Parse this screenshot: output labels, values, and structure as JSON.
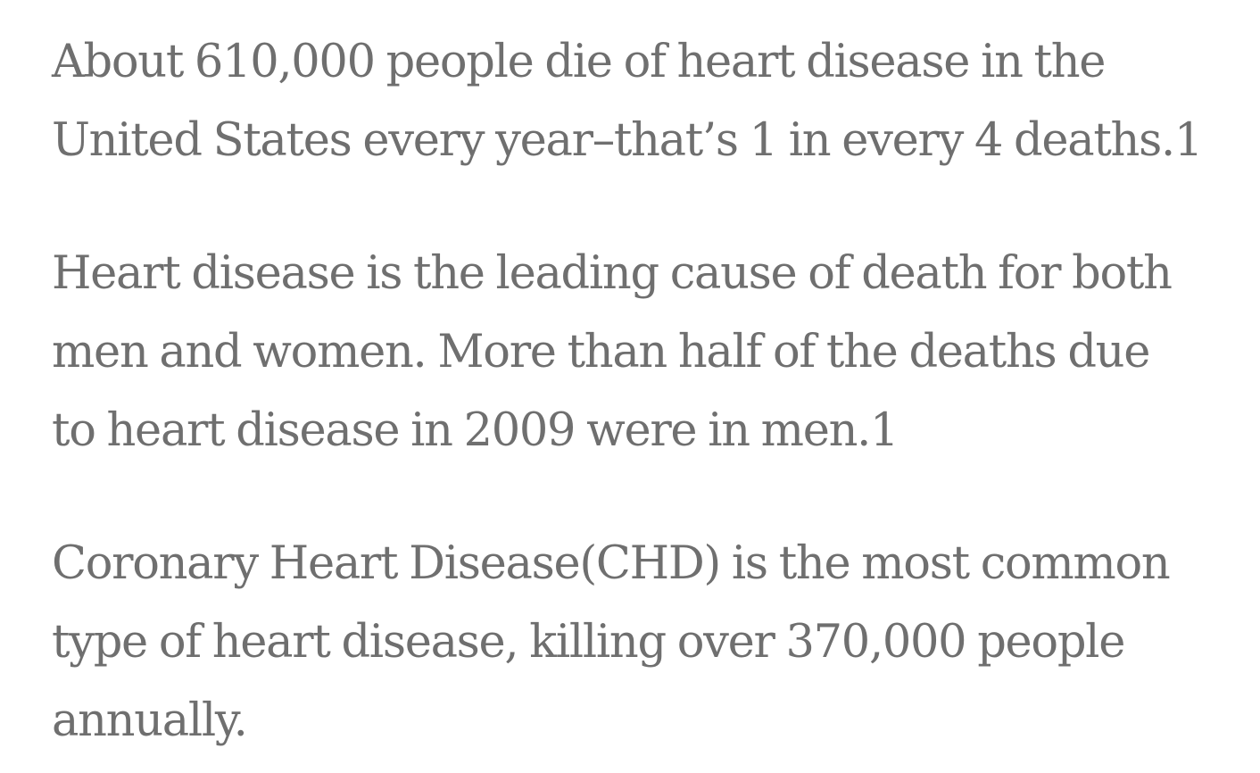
{
  "paragraphs": [
    {
      "lines": [
        "About 610,000 people die of heart disease in the",
        "United States every year–that’s 1 in every 4 deaths.1"
      ]
    },
    {
      "lines": [
        "Heart disease is the leading cause of death for both",
        "men and women. More than half of the deaths due",
        "to heart disease in 2009 were in men.1"
      ]
    },
    {
      "lines": [
        "Coronary Heart Disease(CHD) is the most common",
        "type of heart disease, killing over 370,000 people",
        "annually."
      ]
    }
  ],
  "colors": {
    "text": "#6f6f6f",
    "background": "#ffffff"
  }
}
